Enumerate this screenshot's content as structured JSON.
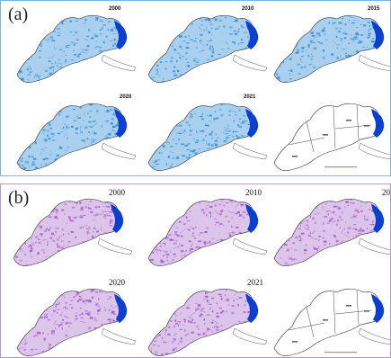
{
  "panel_a": {
    "label": "(a)",
    "years": [
      "2000",
      "2010",
      "2015",
      "2020",
      "2021"
    ],
    "style": "blue",
    "colors": {
      "main": "#3a8ccf",
      "light": "#a9d0ee",
      "coast": "#0b3fd1"
    }
  },
  "panel_b": {
    "label": "(b)",
    "years": [
      "2000",
      "2010",
      "20",
      "2020",
      "2021"
    ],
    "style": "purple",
    "colors": {
      "main": "#a25cc6",
      "light": "#dcc4ea",
      "coast": "#0b3fd1"
    }
  }
}
